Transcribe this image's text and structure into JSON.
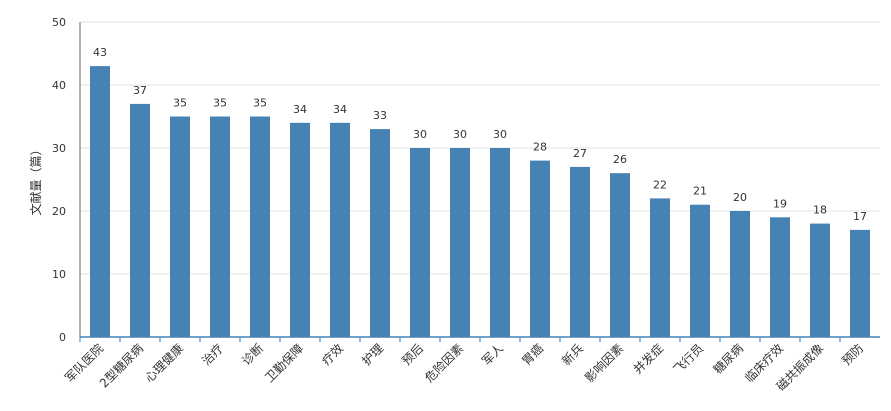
{
  "chart_data": {
    "type": "bar",
    "ylabel": "文献量（篇）",
    "ylim": [
      0,
      50
    ],
    "yticks": [
      0,
      10,
      20,
      30,
      40,
      50
    ],
    "grid": true,
    "bar_color": "#4682b4",
    "categories": [
      "军队医院",
      "2型糖尿病",
      "心理健康",
      "治疗",
      "诊断",
      "卫勤保障",
      "疗效",
      "护理",
      "预后",
      "危险因素",
      "军人",
      "胃癌",
      "新兵",
      "影响因素",
      "并发症",
      "飞行员",
      "糖尿病",
      "临床疗效",
      "磁共振成像",
      "预防"
    ],
    "values": [
      43,
      37,
      35,
      35,
      35,
      34,
      34,
      33,
      30,
      30,
      30,
      28,
      27,
      26,
      22,
      21,
      20,
      19,
      18,
      17
    ]
  }
}
